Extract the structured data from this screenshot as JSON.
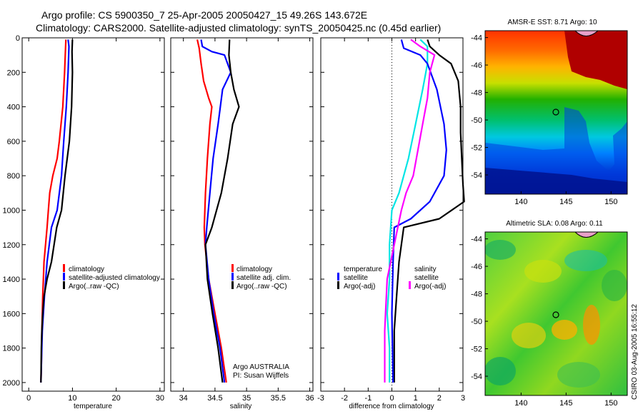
{
  "title_line1": "Argo profile: CS 5900350_7 25-Apr-2005 20050427_15 49.26S 143.672E",
  "title_line2": "Climatology: CARS2000. Satellite-adjusted climatology: synTS_20050425.nc (0.45d earlier)",
  "stamp": "CSIRO 03-Aug-2005 16:55:12",
  "colors": {
    "red": "#ff0000",
    "blue": "#0000ff",
    "black": "#000000",
    "cyan": "#00e5e5",
    "magenta": "#ff00ff"
  },
  "chart_data": [
    {
      "type": "line",
      "xlabel": "temperature",
      "xlim": [
        -1.5,
        31
      ],
      "ylim": [
        0,
        2050
      ],
      "x_ticks": [
        "0",
        "10",
        "20",
        "30"
      ],
      "y_ticks": [
        "0",
        "200",
        "400",
        "600",
        "800",
        "1000",
        "1200",
        "1400",
        "1600",
        "1800",
        "2000"
      ],
      "legend": [
        "climatology",
        "satellite-adjusted climatology",
        "Argo(..raw -QC)"
      ],
      "series": [
        {
          "name": "climatology",
          "color": "red",
          "points": [
            [
              8.5,
              10
            ],
            [
              8.2,
              200
            ],
            [
              7.8,
              400
            ],
            [
              7,
              600
            ],
            [
              6.5,
              700
            ],
            [
              5.5,
              800
            ],
            [
              4.8,
              900
            ],
            [
              4.5,
              1000
            ],
            [
              4.2,
              1100
            ],
            [
              3.5,
              1300
            ],
            [
              3.2,
              1500
            ],
            [
              3,
              1700
            ],
            [
              2.9,
              1900
            ],
            [
              2.8,
              2000
            ]
          ]
        },
        {
          "name": "satellite-adjusted climatology",
          "color": "blue",
          "points": [
            [
              9,
              10
            ],
            [
              9.2,
              50
            ],
            [
              9,
              200
            ],
            [
              8.6,
              400
            ],
            [
              8,
              600
            ],
            [
              7.5,
              800
            ],
            [
              6.5,
              1000
            ],
            [
              5.2,
              1100
            ],
            [
              4.2,
              1300
            ],
            [
              3.6,
              1500
            ],
            [
              3.1,
              1700
            ],
            [
              2.9,
              1900
            ],
            [
              2.8,
              2000
            ]
          ]
        },
        {
          "name": "Argo(..raw -QC)",
          "color": "black",
          "points": [
            [
              10,
              10
            ],
            [
              9.9,
              80
            ],
            [
              10,
              200
            ],
            [
              9.8,
              400
            ],
            [
              9.3,
              600
            ],
            [
              8.3,
              800
            ],
            [
              7.5,
              1000
            ],
            [
              6.4,
              1100
            ],
            [
              5.2,
              1300
            ],
            [
              4.2,
              1400
            ],
            [
              3.5,
              1500
            ],
            [
              3.2,
              1600
            ],
            [
              3,
              1700
            ],
            [
              2.9,
              1800
            ],
            [
              2.8,
              2000
            ]
          ]
        }
      ]
    },
    {
      "type": "line",
      "xlabel": "salinity",
      "xlim": [
        33.8,
        36.05
      ],
      "ylim": [
        0,
        2050
      ],
      "x_ticks": [
        "34",
        "34.5",
        "35",
        "35.5",
        "36"
      ],
      "legend": [
        "climatology",
        "satellite adj. clim.",
        "Argo(..raw -QC)"
      ],
      "annotations": [
        "Argo AUSTRALIA",
        "PI: Susan Wijffels"
      ],
      "series": [
        {
          "name": "climatology",
          "color": "red",
          "points": [
            [
              34.22,
              10
            ],
            [
              34.25,
              60
            ],
            [
              34.28,
              150
            ],
            [
              34.32,
              250
            ],
            [
              34.4,
              350
            ],
            [
              34.45,
              400
            ],
            [
              34.42,
              500
            ],
            [
              34.38,
              700
            ],
            [
              34.35,
              900
            ],
            [
              34.33,
              1100
            ],
            [
              34.34,
              1200
            ],
            [
              34.4,
              1400
            ],
            [
              34.5,
              1600
            ],
            [
              34.6,
              1800
            ],
            [
              34.68,
              2000
            ]
          ]
        },
        {
          "name": "satellite adj. clim.",
          "color": "blue",
          "points": [
            [
              34.28,
              10
            ],
            [
              34.3,
              50
            ],
            [
              34.45,
              80
            ],
            [
              34.65,
              100
            ],
            [
              34.75,
              200
            ],
            [
              34.62,
              300
            ],
            [
              34.55,
              500
            ],
            [
              34.47,
              700
            ],
            [
              34.42,
              900
            ],
            [
              34.37,
              1100
            ],
            [
              34.35,
              1200
            ],
            [
              34.4,
              1400
            ],
            [
              34.48,
              1600
            ],
            [
              34.58,
              1800
            ],
            [
              34.65,
              2000
            ]
          ]
        },
        {
          "name": "Argo(..raw -QC)",
          "color": "black",
          "points": [
            [
              34.73,
              10
            ],
            [
              34.72,
              100
            ],
            [
              34.75,
              200
            ],
            [
              34.8,
              300
            ],
            [
              34.88,
              400
            ],
            [
              34.78,
              500
            ],
            [
              34.7,
              700
            ],
            [
              34.6,
              900
            ],
            [
              34.45,
              1100
            ],
            [
              34.35,
              1200
            ],
            [
              34.38,
              1400
            ],
            [
              34.46,
              1600
            ],
            [
              34.55,
              1800
            ],
            [
              34.62,
              2000
            ]
          ]
        }
      ]
    },
    {
      "type": "line",
      "xlabel": "difference from climatology",
      "xlim": [
        -3,
        3
      ],
      "ylim": [
        0,
        2050
      ],
      "x_ticks": [
        "-3",
        "-2",
        "-1",
        "0",
        "1",
        "2",
        "3"
      ],
      "legend_temperature": [
        "temperature",
        "satellite",
        "Argo(-adj)"
      ],
      "legend_salinity": [
        "salinity",
        "satellite",
        "Argo(-adj)"
      ],
      "series": [
        {
          "name": "temperature satellite",
          "color": "cyan",
          "points": [
            [
              1.2,
              10
            ],
            [
              1.5,
              50
            ],
            [
              1.5,
              150
            ],
            [
              1.3,
              300
            ],
            [
              1,
              500
            ],
            [
              0.7,
              700
            ],
            [
              0.3,
              900
            ],
            [
              0,
              1000
            ],
            [
              -0.1,
              1200
            ],
            [
              -0.1,
              1400
            ],
            [
              -0.2,
              1600
            ],
            [
              -0.1,
              1800
            ],
            [
              -0.1,
              2000
            ]
          ]
        },
        {
          "name": "temperature Argo(-adj)",
          "color": "black",
          "points": [
            [
              1.5,
              10
            ],
            [
              1.6,
              50
            ],
            [
              2,
              100
            ],
            [
              2.5,
              150
            ],
            [
              2.8,
              250
            ],
            [
              2.9,
              400
            ],
            [
              2.9,
              550
            ],
            [
              3,
              850
            ],
            [
              3.05,
              950
            ],
            [
              2,
              1050
            ],
            [
              0.5,
              1100
            ],
            [
              0.3,
              1300
            ],
            [
              0.2,
              1500
            ],
            [
              0.1,
              1700
            ],
            [
              0.1,
              2000
            ]
          ]
        },
        {
          "name": "satellite",
          "color": "blue",
          "points": [
            [
              0.4,
              10
            ],
            [
              0.5,
              60
            ],
            [
              1.2,
              100
            ],
            [
              1.5,
              150
            ],
            [
              1.9,
              300
            ],
            [
              2.2,
              500
            ],
            [
              2.3,
              650
            ],
            [
              2.2,
              800
            ],
            [
              1.6,
              950
            ],
            [
              0.8,
              1050
            ],
            [
              0.1,
              1100
            ],
            [
              0.05,
              1300
            ],
            [
              0,
              1600
            ],
            [
              0.05,
              2000
            ]
          ]
        },
        {
          "name": "salinity Argo(-adj)",
          "color": "magenta",
          "points": [
            [
              0.8,
              10
            ],
            [
              1.2,
              50
            ],
            [
              1.8,
              100
            ],
            [
              1.6,
              200
            ],
            [
              1.5,
              350
            ],
            [
              1.3,
              500
            ],
            [
              1.1,
              650
            ],
            [
              0.9,
              800
            ],
            [
              0.6,
              900
            ],
            [
              0.4,
              1000
            ],
            [
              0.1,
              1200
            ],
            [
              -0.2,
              1400
            ],
            [
              -0.3,
              1700
            ],
            [
              -0.3,
              2000
            ]
          ]
        }
      ]
    }
  ],
  "maps": [
    {
      "title": "AMSR-E SST: 8.71 Argo: 10",
      "x_ticks": [
        "140",
        "145",
        "150"
      ],
      "y_ticks": [
        "-44",
        "-46",
        "-48",
        "-50",
        "-52",
        "-54"
      ]
    },
    {
      "title": "Altimetric SLA: 0.08 Argo: 0.11",
      "x_ticks": [
        "140",
        "145",
        "150"
      ],
      "y_ticks": [
        "-44",
        "-46",
        "-48",
        "-50",
        "-52",
        "-54"
      ]
    }
  ]
}
